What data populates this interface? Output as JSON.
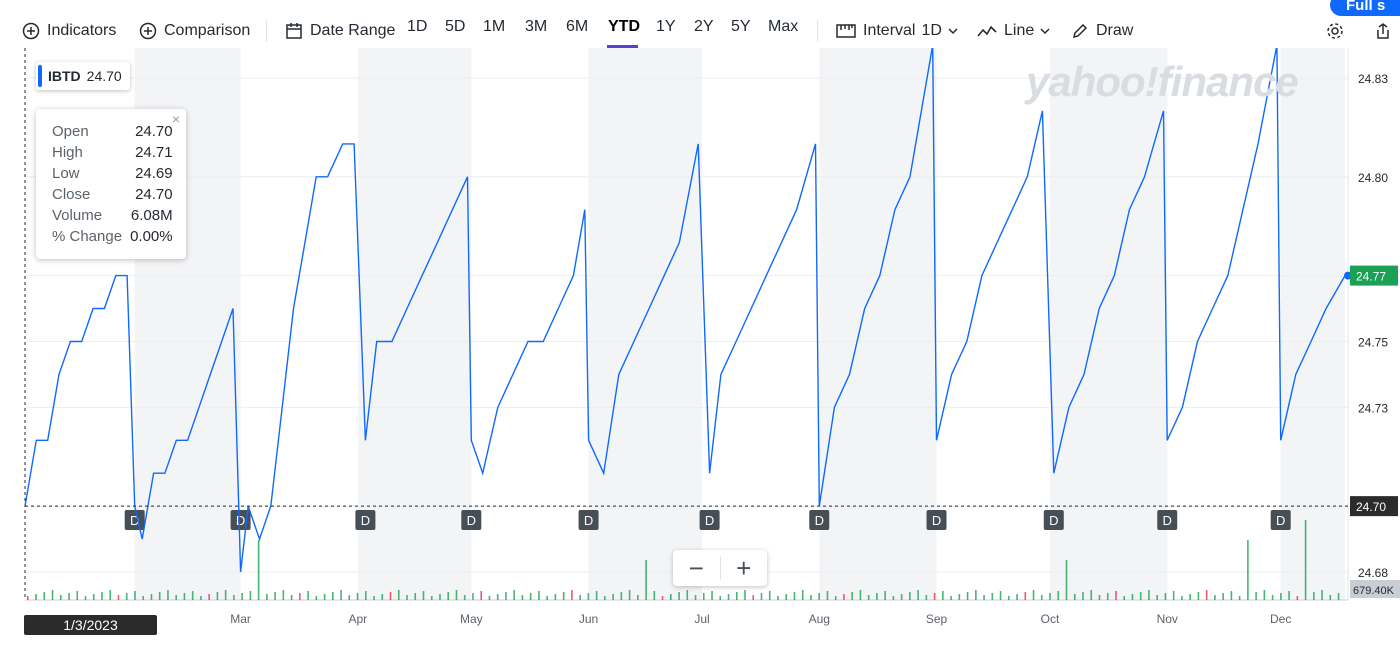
{
  "toolbar": {
    "indicators": "Indicators",
    "comparison": "Comparison",
    "date_range": "Date Range",
    "ranges": [
      "1D",
      "5D",
      "1M",
      "3M",
      "6M",
      "YTD",
      "1Y",
      "2Y",
      "5Y",
      "Max"
    ],
    "active_range": "YTD",
    "interval_label": "Interval",
    "interval_value": "1D",
    "chart_type": "Line",
    "draw": "Draw",
    "fullscreen": "Full s"
  },
  "ticker": {
    "symbol": "IBTD",
    "price": "24.70"
  },
  "tooltip": {
    "rows": [
      {
        "label": "Open",
        "value": "24.70"
      },
      {
        "label": "High",
        "value": "24.71"
      },
      {
        "label": "Low",
        "value": "24.69"
      },
      {
        "label": "Close",
        "value": "24.70"
      },
      {
        "label": "Volume",
        "value": "6.08M"
      },
      {
        "label": "% Change",
        "value": "0.00%"
      }
    ],
    "close_icon": "×"
  },
  "watermark": "yahoo!finance",
  "crosshair_date": "1/3/2023",
  "zoom": {
    "minus": "−",
    "plus": "+"
  },
  "colors": {
    "line": "#0f69ff",
    "last_price": "#1aa154",
    "up_volume": "#1aa154",
    "down_volume": "#e8334a",
    "crosshair_label": "#2b2b2b"
  },
  "chart_data": {
    "type": "line",
    "ylim": [
      24.665,
      24.845
    ],
    "y_ticks": [
      "24.83",
      "24.80",
      "24.77",
      "24.75",
      "24.73",
      "24.70",
      "24.68"
    ],
    "x_ticks": [
      "Mar",
      "Apr",
      "May",
      "Jun",
      "Jul",
      "Aug",
      "Sep",
      "Oct",
      "Nov",
      "Dec"
    ],
    "last_price_label": "24.77",
    "crosshair_price_label": "24.70",
    "volume_label": "679.40K",
    "dividend_marker": "D",
    "dividend_dates": [
      "2023-02-01",
      "2023-03-01",
      "2023-04-03",
      "2023-05-01",
      "2023-06-01",
      "2023-07-03",
      "2023-08-01",
      "2023-09-01",
      "2023-10-02",
      "2023-11-01",
      "2023-12-01"
    ],
    "x": [
      "2023-01-03",
      "2023-01-06",
      "2023-01-09",
      "2023-01-12",
      "2023-01-15",
      "2023-01-18",
      "2023-01-21",
      "2023-01-24",
      "2023-01-27",
      "2023-01-30",
      "2023-02-01",
      "2023-02-03",
      "2023-02-06",
      "2023-02-09",
      "2023-02-12",
      "2023-02-15",
      "2023-02-18",
      "2023-02-21",
      "2023-02-24",
      "2023-02-27",
      "2023-03-01",
      "2023-03-03",
      "2023-03-06",
      "2023-03-09",
      "2023-03-12",
      "2023-03-15",
      "2023-03-18",
      "2023-03-21",
      "2023-03-24",
      "2023-03-28",
      "2023-03-31",
      "2023-04-03",
      "2023-04-06",
      "2023-04-10",
      "2023-04-14",
      "2023-04-18",
      "2023-04-22",
      "2023-04-26",
      "2023-04-30",
      "2023-05-01",
      "2023-05-04",
      "2023-05-08",
      "2023-05-12",
      "2023-05-16",
      "2023-05-20",
      "2023-05-24",
      "2023-05-28",
      "2023-05-31",
      "2023-06-01",
      "2023-06-05",
      "2023-06-09",
      "2023-06-13",
      "2023-06-17",
      "2023-06-21",
      "2023-06-25",
      "2023-06-30",
      "2023-07-03",
      "2023-07-06",
      "2023-07-10",
      "2023-07-14",
      "2023-07-18",
      "2023-07-22",
      "2023-07-26",
      "2023-07-31",
      "2023-08-01",
      "2023-08-05",
      "2023-08-09",
      "2023-08-13",
      "2023-08-17",
      "2023-08-21",
      "2023-08-25",
      "2023-08-31",
      "2023-09-01",
      "2023-09-05",
      "2023-09-09",
      "2023-09-13",
      "2023-09-17",
      "2023-09-21",
      "2023-09-25",
      "2023-09-29",
      "2023-10-02",
      "2023-10-06",
      "2023-10-10",
      "2023-10-14",
      "2023-10-18",
      "2023-10-22",
      "2023-10-26",
      "2023-10-31",
      "2023-11-01",
      "2023-11-05",
      "2023-11-09",
      "2023-11-13",
      "2023-11-17",
      "2023-11-21",
      "2023-11-25",
      "2023-11-30",
      "2023-12-01",
      "2023-12-05",
      "2023-12-09",
      "2023-12-13",
      "2023-12-18"
    ],
    "series": [
      {
        "values": [
          24.7,
          24.72,
          24.72,
          24.74,
          24.75,
          24.75,
          24.76,
          24.76,
          24.77,
          24.77,
          24.7,
          24.69,
          24.71,
          24.71,
          24.72,
          24.72,
          24.73,
          24.74,
          24.75,
          24.76,
          24.68,
          24.7,
          24.69,
          24.7,
          24.73,
          24.76,
          24.78,
          24.8,
          24.8,
          24.81,
          24.81,
          24.72,
          24.75,
          24.75,
          24.76,
          24.77,
          24.78,
          24.79,
          24.8,
          24.72,
          24.71,
          24.73,
          24.74,
          24.75,
          24.75,
          24.76,
          24.77,
          24.79,
          24.72,
          24.71,
          24.74,
          24.75,
          24.76,
          24.77,
          24.78,
          24.81,
          24.71,
          24.74,
          24.75,
          24.76,
          24.77,
          24.78,
          24.79,
          24.81,
          24.7,
          24.73,
          24.74,
          24.76,
          24.77,
          24.79,
          24.8,
          24.84,
          24.72,
          24.74,
          24.75,
          24.77,
          24.78,
          24.79,
          24.8,
          24.82,
          24.71,
          24.73,
          24.74,
          24.76,
          24.77,
          24.79,
          24.8,
          24.82,
          24.72,
          24.73,
          24.75,
          24.76,
          24.77,
          24.79,
          24.81,
          24.84,
          24.72,
          24.74,
          24.75,
          24.76,
          24.77
        ]
      }
    ]
  }
}
